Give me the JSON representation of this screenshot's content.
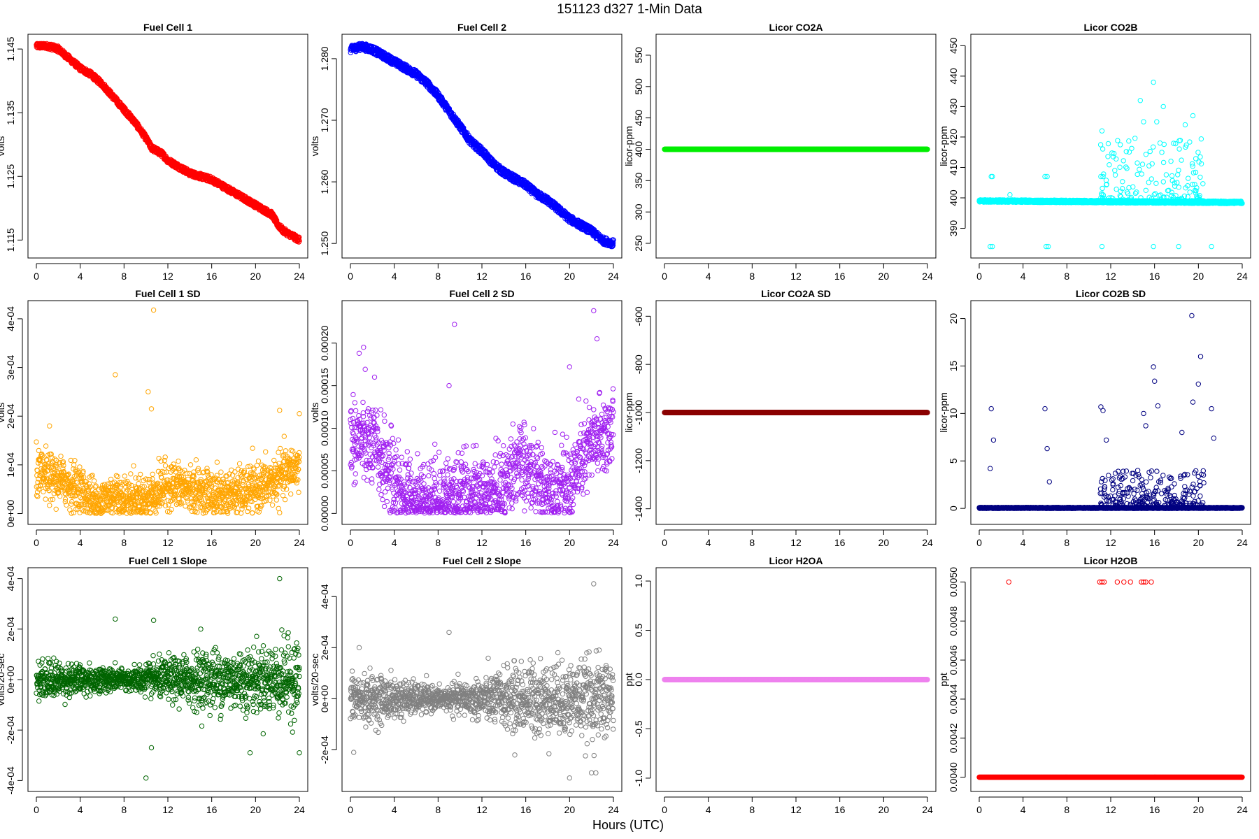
{
  "figure": {
    "title": "151123   d327   1-Min Data",
    "xlabel": "Hours (UTC)"
  },
  "chart_data": [
    {
      "id": "fc1",
      "type": "scatter",
      "title": "Fuel Cell 1",
      "ylabel": "volts",
      "xlim": [
        0,
        24
      ],
      "ylim": [
        1.1135,
        1.146
      ],
      "xticks": [
        0,
        4,
        8,
        12,
        16,
        20,
        24
      ],
      "yticks": [
        1.115,
        1.125,
        1.135,
        1.145
      ],
      "ytick_labels": [
        "1.115",
        "1.125",
        "1.135",
        "1.145"
      ],
      "color": "#ff0000",
      "x": [
        0,
        1,
        2,
        3,
        4,
        5,
        6,
        7,
        8,
        9,
        10,
        10.5,
        11,
        11.5,
        12,
        13,
        14,
        15,
        16,
        17,
        18,
        19,
        20,
        21,
        21.5,
        22,
        22.5,
        23,
        23.5,
        24
      ],
      "y": [
        1.1455,
        1.1455,
        1.145,
        1.1435,
        1.142,
        1.141,
        1.1395,
        1.1375,
        1.1355,
        1.1335,
        1.131,
        1.1295,
        1.129,
        1.1285,
        1.1275,
        1.1265,
        1.1255,
        1.125,
        1.1245,
        1.1235,
        1.1225,
        1.1215,
        1.1205,
        1.1195,
        1.119,
        1.1175,
        1.1165,
        1.116,
        1.1155,
        1.115
      ],
      "spread": 0.00045,
      "n": 1440,
      "mode": "band"
    },
    {
      "id": "fc2",
      "type": "scatter",
      "title": "Fuel Cell 2",
      "ylabel": "volts",
      "xlim": [
        0,
        24
      ],
      "ylim": [
        1.249,
        1.2826
      ],
      "xticks": [
        0,
        4,
        8,
        12,
        16,
        20,
        24
      ],
      "yticks": [
        1.25,
        1.26,
        1.27,
        1.28
      ],
      "ytick_labels": [
        "1.250",
        "1.260",
        "1.270",
        "1.280"
      ],
      "color": "#0000ff",
      "x": [
        0,
        1,
        2,
        3,
        4,
        5,
        6,
        7,
        8,
        9,
        10,
        11,
        12,
        13,
        14,
        15,
        16,
        17,
        18,
        19,
        20,
        21,
        22,
        23,
        24
      ],
      "y": [
        1.2815,
        1.282,
        1.2815,
        1.2805,
        1.2795,
        1.2785,
        1.2775,
        1.276,
        1.274,
        1.2715,
        1.269,
        1.2665,
        1.265,
        1.263,
        1.2615,
        1.2605,
        1.2595,
        1.258,
        1.257,
        1.2555,
        1.254,
        1.253,
        1.252,
        1.2505,
        1.25
      ],
      "spread": 0.0006,
      "n": 1440,
      "mode": "band"
    },
    {
      "id": "co2a",
      "type": "scatter",
      "title": "Licor CO2A",
      "ylabel": "licor-ppm",
      "xlim": [
        0,
        24
      ],
      "ylim": [
        240,
        570
      ],
      "xticks": [
        0,
        4,
        8,
        12,
        16,
        20,
        24
      ],
      "yticks": [
        250,
        300,
        350,
        400,
        450,
        500,
        550
      ],
      "ytick_labels": [
        "250",
        "300",
        "350",
        "400",
        "450",
        "500",
        "550"
      ],
      "color": "#00ee00",
      "x": [
        0,
        24
      ],
      "y": [
        400,
        400
      ],
      "spread": 0,
      "n": 1440,
      "mode": "band"
    },
    {
      "id": "co2b",
      "type": "scatter",
      "title": "Licor CO2B",
      "ylabel": "licor-ppm",
      "xlim": [
        0,
        24
      ],
      "ylim": [
        383,
        451
      ],
      "xticks": [
        0,
        4,
        8,
        12,
        16,
        20,
        24
      ],
      "yticks": [
        390,
        400,
        410,
        420,
        430,
        440,
        450
      ],
      "ytick_labels": [
        "390",
        "400",
        "410",
        "420",
        "430",
        "440",
        "450"
      ],
      "color": "#00ffff",
      "x": [
        0,
        24
      ],
      "y": [
        399,
        398.5
      ],
      "spread": 0.4,
      "n": 1440,
      "mode": "band",
      "outliers": [
        [
          1.1,
          407
        ],
        [
          1.2,
          407
        ],
        [
          1.0,
          384
        ],
        [
          1.2,
          384
        ],
        [
          2.8,
          401
        ],
        [
          6.0,
          407
        ],
        [
          6.2,
          407
        ],
        [
          6.1,
          384
        ],
        [
          6.3,
          384
        ],
        [
          11.2,
          422
        ],
        [
          11.1,
          407
        ],
        [
          11.3,
          407
        ],
        [
          11.2,
          384
        ],
        [
          14.7,
          432
        ],
        [
          15.9,
          438
        ],
        [
          15.0,
          425
        ],
        [
          16.2,
          425
        ],
        [
          16.8,
          430
        ],
        [
          19.5,
          427
        ],
        [
          15.9,
          384
        ],
        [
          18.2,
          384
        ],
        [
          21.2,
          384
        ],
        [
          16.5,
          418
        ],
        [
          18.8,
          424
        ]
      ],
      "scatter_region": {
        "x_from": 11.0,
        "x_to": 20.5,
        "y_base": 399,
        "y_max": 420,
        "n": 160
      }
    },
    {
      "id": "fc1sd",
      "type": "scatter",
      "title": "Fuel Cell 1 SD",
      "ylabel": "volts",
      "xlim": [
        0,
        24
      ],
      "ylim": [
        -5e-06,
        0.00042
      ],
      "xticks": [
        0,
        4,
        8,
        12,
        16,
        20,
        24
      ],
      "yticks": [
        0,
        0.0001,
        0.0002,
        0.0003,
        0.0004
      ],
      "ytick_labels": [
        "0e+00",
        "1e-04",
        "2e-04",
        "3e-04",
        "4e-04"
      ],
      "color": "#ffa500",
      "x": [
        0,
        2,
        4,
        5.5,
        7,
        8,
        10,
        12,
        14,
        16,
        18,
        20,
        22,
        24
      ],
      "y": [
        8e-05,
        7e-05,
        5e-05,
        2e-05,
        4e-05,
        3e-05,
        3e-05,
        6e-05,
        5e-05,
        4e-05,
        4e-05,
        5e-05,
        7e-05,
        0.0001
      ],
      "spread": 4e-05,
      "n": 1440,
      "mode": "cloud",
      "outliers": [
        [
          10.7,
          0.00042
        ],
        [
          7.2,
          0.000285
        ],
        [
          10.2,
          0.00025
        ],
        [
          10.5,
          0.000215
        ],
        [
          22.2,
          0.000212
        ],
        [
          24,
          0.000205
        ],
        [
          1.2,
          0.00018
        ]
      ]
    },
    {
      "id": "fc2sd",
      "type": "scatter",
      "title": "Fuel Cell 2 SD",
      "ylabel": "volts",
      "xlim": [
        0,
        24
      ],
      "ylim": [
        -3e-06,
        0.00024
      ],
      "xticks": [
        0,
        4,
        8,
        12,
        16,
        20,
        24
      ],
      "yticks": [
        0,
        5e-05,
        0.0001,
        0.00015,
        0.0002
      ],
      "ytick_labels": [
        "0.00000",
        "0.00005",
        "0.00010",
        "0.00015",
        "0.00020"
      ],
      "color": "#a020f0",
      "x": [
        0,
        2,
        4,
        5.5,
        8,
        12,
        14,
        15,
        18,
        20,
        21,
        22,
        24
      ],
      "y": [
        9e-05,
        8e-05,
        4e-05,
        1.5e-05,
        2e-05,
        2e-05,
        3e-05,
        6e-05,
        3e-05,
        3e-05,
        6e-05,
        8e-05,
        0.0001
      ],
      "spread": 4e-05,
      "n": 1440,
      "mode": "cloud",
      "outliers": [
        [
          22.2,
          0.000238
        ],
        [
          9.5,
          0.000222
        ],
        [
          22.5,
          0.000205
        ],
        [
          1.2,
          0.000195
        ],
        [
          0.8,
          0.000188
        ],
        [
          20.0,
          0.000172
        ],
        [
          2.2,
          0.00016
        ],
        [
          9.0,
          0.00015
        ]
      ]
    },
    {
      "id": "co2asd",
      "type": "scatter",
      "title": "Licor CO2A SD",
      "ylabel": "licor-ppm",
      "xlim": [
        0,
        24
      ],
      "ylim": [
        -1430,
        -570
      ],
      "xticks": [
        0,
        4,
        8,
        12,
        16,
        20,
        24
      ],
      "yticks": [
        -1400,
        -1200,
        -1000,
        -800,
        -600
      ],
      "ytick_labels": [
        "-1400",
        "-1200",
        "-1000",
        "-800",
        "-600"
      ],
      "color": "#8b0000",
      "x": [
        0,
        24
      ],
      "y": [
        -1000,
        -1000
      ],
      "spread": 0,
      "n": 1440,
      "mode": "band"
    },
    {
      "id": "co2bsd",
      "type": "scatter",
      "title": "Licor CO2B SD",
      "ylabel": "licor-ppm",
      "xlim": [
        0,
        24
      ],
      "ylim": [
        -0.8,
        21
      ],
      "xticks": [
        0,
        4,
        8,
        12,
        16,
        20,
        24
      ],
      "yticks": [
        0,
        5,
        10,
        15,
        20
      ],
      "ytick_labels": [
        "0",
        "5",
        "10",
        "15",
        "20"
      ],
      "color": "#000080",
      "x": [
        0,
        24
      ],
      "y": [
        0.05,
        0.05
      ],
      "spread": 0.05,
      "n": 1440,
      "mode": "band",
      "outliers": [
        [
          19.4,
          20.3
        ],
        [
          20.2,
          16.0
        ],
        [
          15.9,
          14.9
        ],
        [
          16.0,
          13.4
        ],
        [
          20.0,
          13.1
        ],
        [
          19.5,
          11.2
        ],
        [
          21.2,
          10.5
        ],
        [
          1.1,
          10.5
        ],
        [
          6.0,
          10.5
        ],
        [
          11.1,
          10.7
        ],
        [
          11.3,
          10.3
        ],
        [
          15.0,
          10.0
        ],
        [
          16.3,
          10.8
        ],
        [
          1.3,
          7.2
        ],
        [
          6.2,
          6.3
        ],
        [
          11.6,
          7.2
        ],
        [
          21.4,
          7.4
        ],
        [
          6.4,
          2.8
        ],
        [
          1.0,
          4.2
        ],
        [
          15.2,
          8.7
        ],
        [
          18.5,
          8.0
        ]
      ],
      "scatter_region": {
        "x_from": 11.0,
        "x_to": 20.5,
        "y_base": 0.3,
        "y_max": 4.0,
        "n": 240
      }
    },
    {
      "id": "fc1slope",
      "type": "scatter",
      "title": "Fuel Cell 1 Slope",
      "ylabel": "volts/20-sec",
      "xlim": [
        0,
        24
      ],
      "ylim": [
        -0.00041,
        0.00041
      ],
      "xticks": [
        0,
        4,
        8,
        12,
        16,
        20,
        24
      ],
      "yticks": [
        -0.0004,
        -0.0002,
        0,
        0.0002,
        0.0004
      ],
      "ytick_labels": [
        "-4e-04",
        "-2e-04",
        "0e+00",
        "2e-04",
        "4e-04"
      ],
      "color": "#006400",
      "x": [
        0,
        4,
        8,
        12,
        16,
        20,
        24
      ],
      "y": [
        0,
        0,
        0,
        0,
        0,
        0,
        0
      ],
      "spread_profile": [
        4e-05,
        3e-05,
        2e-05,
        4e-05,
        6e-05,
        6e-05,
        8e-05
      ],
      "n": 1440,
      "mode": "noise",
      "outliers": [
        [
          22.2,
          0.0004
        ],
        [
          7.2,
          0.00024
        ],
        [
          10.7,
          0.000235
        ],
        [
          10.0,
          -0.00039
        ],
        [
          10.5,
          -0.00027
        ],
        [
          19.5,
          -0.00029
        ],
        [
          15.0,
          0.0002
        ],
        [
          24,
          -0.00029
        ]
      ]
    },
    {
      "id": "fc2slope",
      "type": "scatter",
      "title": "Fuel Cell 2 Slope",
      "ylabel": "volts/20-sec",
      "xlim": [
        0,
        24
      ],
      "ylim": [
        -0.00033,
        0.00048
      ],
      "xticks": [
        0,
        4,
        8,
        12,
        16,
        20,
        24
      ],
      "yticks": [
        -0.0002,
        0,
        0.0002,
        0.0004
      ],
      "ytick_labels": [
        "-2e-04",
        "0e+00",
        "2e-04",
        "4e-04"
      ],
      "color": "#808080",
      "x": [
        0,
        4,
        8,
        12,
        16,
        20,
        24
      ],
      "y": [
        0,
        0,
        0,
        0,
        0,
        0,
        0
      ],
      "spread_profile": [
        5e-05,
        4e-05,
        2e-05,
        4e-05,
        7e-05,
        7e-05,
        8e-05
      ],
      "n": 1440,
      "mode": "noise",
      "outliers": [
        [
          22.2,
          0.00045
        ],
        [
          9.0,
          0.00026
        ],
        [
          0.8,
          0.0002
        ],
        [
          20.0,
          -0.00031
        ],
        [
          22.0,
          -0.00029
        ],
        [
          22.4,
          -0.00029
        ],
        [
          0.3,
          -0.00021
        ],
        [
          15.0,
          -0.00022
        ]
      ]
    },
    {
      "id": "h2oa",
      "type": "scatter",
      "title": "Licor H2OA",
      "ylabel": "ppt",
      "xlim": [
        0,
        24
      ],
      "ylim": [
        -1.05,
        1.05
      ],
      "xticks": [
        0,
        4,
        8,
        12,
        16,
        20,
        24
      ],
      "yticks": [
        -1,
        -0.5,
        0,
        0.5,
        1
      ],
      "ytick_labels": [
        "-1.0",
        "-0.5",
        "0.0",
        "0.5",
        "1.0"
      ],
      "color": "#ee82ee",
      "x": [
        0,
        24
      ],
      "y": [
        0,
        0
      ],
      "spread": 0,
      "n": 1440,
      "mode": "band"
    },
    {
      "id": "h2ob",
      "type": "scatter",
      "title": "Licor H2OB",
      "ylabel": "ppt",
      "xlim": [
        0,
        24
      ],
      "ylim": [
        0.00397,
        0.00503
      ],
      "xticks": [
        0,
        4,
        8,
        12,
        16,
        20,
        24
      ],
      "yticks": [
        0.004,
        0.0042,
        0.0044,
        0.0046,
        0.0048,
        0.005
      ],
      "ytick_labels": [
        "0.0040",
        "0.0042",
        "0.0044",
        "0.0046",
        "0.0048",
        "0.0050"
      ],
      "color": "#ff0000",
      "x": [
        0,
        24
      ],
      "y": [
        0.004,
        0.004
      ],
      "spread": 0,
      "n": 1440,
      "mode": "band",
      "outliers": [
        [
          2.7,
          0.005
        ],
        [
          11.0,
          0.005
        ],
        [
          11.2,
          0.005
        ],
        [
          11.4,
          0.005
        ],
        [
          12.6,
          0.005
        ],
        [
          13.2,
          0.005
        ],
        [
          13.8,
          0.005
        ],
        [
          14.8,
          0.005
        ],
        [
          15.0,
          0.005
        ],
        [
          15.2,
          0.005
        ],
        [
          15.7,
          0.005
        ]
      ]
    }
  ]
}
